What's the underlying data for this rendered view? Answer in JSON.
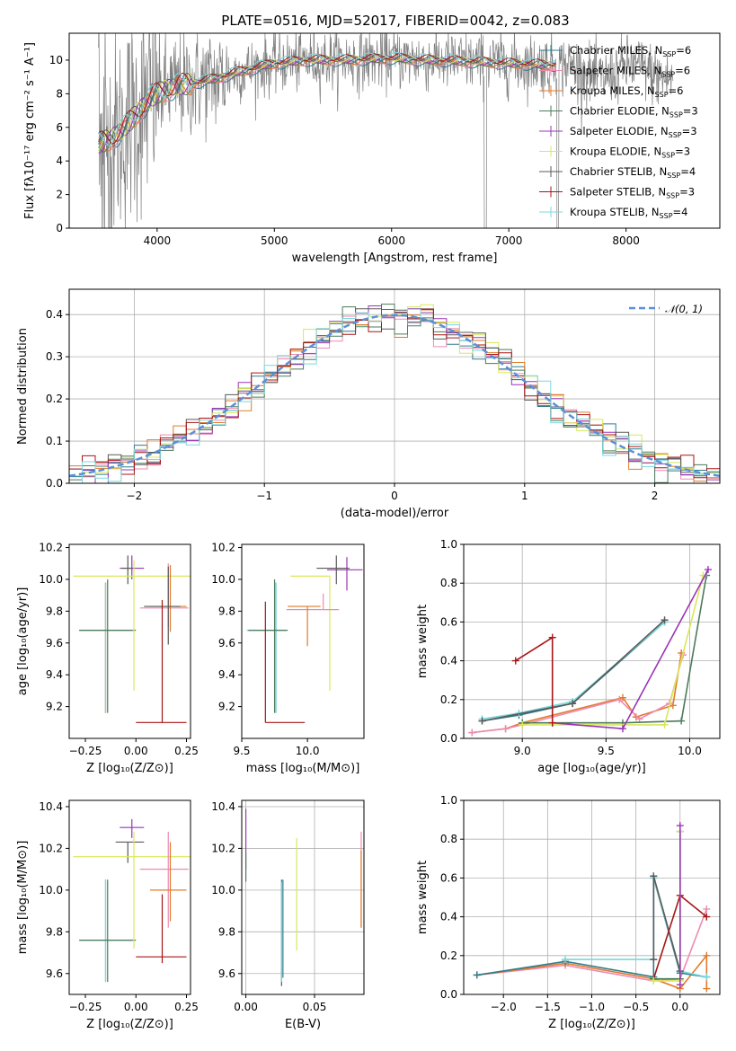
{
  "figure": {
    "title": "PLATE=0516, MJD=52017, FIBERID=0042, z=0.083"
  },
  "colors": {
    "data": "#808080",
    "normal": "#5b8fd9",
    "Chabrier MILES": "#2e7d8c",
    "Salpeter MILES": "#ee8ab2",
    "Kroupa MILES": "#e07b2a",
    "Chabrier ELODIE": "#4d7a5c",
    "Salpeter ELODIE": "#9a35b5",
    "Kroupa ELODIE": "#d8e85a",
    "Chabrier STELIB": "#5a5a5a",
    "Salpeter STELIB": "#a81414",
    "Kroupa STELIB": "#7ad8dc"
  },
  "chart_data": [
    {
      "id": "spectrum",
      "type": "line",
      "xlabel": "wavelength [Angstrom, rest frame]",
      "ylabel": "Flux [fλ10⁻¹⁷ erg cm⁻² s⁻¹ A⁻¹]",
      "xlim": [
        3250,
        8800
      ],
      "ylim": [
        0,
        11.6
      ],
      "xticks": [
        4000,
        5000,
        6000,
        7000,
        8000
      ],
      "yticks": [
        0,
        2,
        4,
        6,
        8,
        10
      ],
      "legend_position": "right",
      "legend": [
        {
          "label": "Chabrier MILES, N",
          "sub": "SSP",
          "n": "=6",
          "model": "Chabrier MILES"
        },
        {
          "label": "Salpeter MILES, N",
          "sub": "SSP",
          "n": "=6",
          "model": "Salpeter MILES"
        },
        {
          "label": "Kroupa MILES, N",
          "sub": "SSP",
          "n": "=6",
          "model": "Kroupa MILES"
        },
        {
          "label": "Chabrier ELODIE, N",
          "sub": "SSP",
          "n": "=3",
          "model": "Chabrier ELODIE"
        },
        {
          "label": "Salpeter ELODIE, N",
          "sub": "SSP",
          "n": "=3",
          "model": "Salpeter ELODIE"
        },
        {
          "label": "Kroupa ELODIE, N",
          "sub": "SSP",
          "n": "=3",
          "model": "Kroupa ELODIE"
        },
        {
          "label": "Chabrier STELIB, N",
          "sub": "SSP",
          "n": "=4",
          "model": "Chabrier STELIB"
        },
        {
          "label": "Salpeter STELIB, N",
          "sub": "SSP",
          "n": "=3",
          "model": "Salpeter STELIB"
        },
        {
          "label": "Kroupa STELIB, N",
          "sub": "SSP",
          "n": "=4",
          "model": "Kroupa STELIB"
        }
      ],
      "model_continuum": {
        "x": [
          3500,
          3600,
          3700,
          3800,
          3900,
          4000,
          4100,
          4200,
          4300,
          4500,
          4700,
          5000,
          5300,
          5600,
          6000,
          6300,
          6700,
          7000,
          7400
        ],
        "y": [
          5.0,
          5.3,
          5.8,
          6.6,
          7.4,
          8.0,
          8.3,
          8.5,
          8.6,
          8.9,
          9.3,
          9.8,
          10.0,
          10.0,
          10.1,
          10.0,
          9.9,
          9.8,
          9.7
        ]
      }
    },
    {
      "id": "residuals",
      "type": "step",
      "xlabel": "(data-model)/error",
      "ylabel": "Normed distribution",
      "xlim": [
        -2.5,
        2.5
      ],
      "ylim": [
        0,
        0.46
      ],
      "xticks": [
        -2,
        -1,
        0,
        1,
        2
      ],
      "yticks": [
        0.0,
        0.1,
        0.2,
        0.3,
        0.4
      ],
      "grid": true,
      "legend_position": "top-right",
      "normal_label": "𝒩(0, 1)"
    },
    {
      "id": "age-vs-Z",
      "type": "errorbar",
      "xlabel": "Z [log₁₀(Z/Z⊙)]",
      "ylabel": "age  [log₁₀(age/yr)]",
      "xlim": [
        -0.33,
        0.27
      ],
      "ylim": [
        9.0,
        10.22
      ],
      "xticks": [
        -0.25,
        0.0,
        0.25
      ],
      "yticks": [
        9.2,
        9.4,
        9.6,
        9.8,
        10.0,
        10.2
      ],
      "points": [
        {
          "model": "Chabrier MILES",
          "x": -0.15,
          "xerr": [
            0.13,
            0.13
          ],
          "y": 9.68,
          "yerr": [
            0.52,
            0.3
          ]
        },
        {
          "model": "Kroupa MILES",
          "x": -0.15,
          "xerr": [
            0.13,
            0.13
          ],
          "y": 9.68,
          "yerr": [
            0.52,
            0.3
          ]
        },
        {
          "model": "Kroupa STELIB",
          "x": -0.15,
          "xerr": [
            0.13,
            0.13
          ],
          "y": 9.68,
          "yerr": [
            0.52,
            0.3
          ]
        },
        {
          "model": "Chabrier ELODIE",
          "x": -0.14,
          "xerr": [
            0.14,
            0.14
          ],
          "y": 9.68,
          "yerr": [
            0.52,
            0.32
          ]
        },
        {
          "model": "Salpeter ELODIE",
          "x": -0.02,
          "xerr": [
            0.06,
            0.06
          ],
          "y": 10.07,
          "yerr": [
            0.07,
            0.08
          ]
        },
        {
          "model": "Chabrier STELIB",
          "x": -0.04,
          "xerr": [
            0.03,
            0.03
          ],
          "y": 10.07,
          "yerr": [
            0.1,
            0.08
          ]
        },
        {
          "model": "Kroupa ELODIE",
          "x": -0.01,
          "xerr": [
            0.3,
            0.3
          ],
          "y": 10.02,
          "yerr": [
            0.72,
            0.1
          ]
        },
        {
          "model": "Salpeter MILES",
          "x": 0.16,
          "xerr": [
            0.14,
            0.1
          ],
          "y": 9.82,
          "yerr": [
            0.12,
            0.28
          ]
        },
        {
          "model": "Kroupa MILES",
          "x": 0.17,
          "xerr": [
            0.1,
            0.08
          ],
          "y": 9.83,
          "yerr": [
            0.16,
            0.26
          ]
        },
        {
          "model": "Chabrier STELIB",
          "x": 0.16,
          "xerr": [
            0.12,
            0.06
          ],
          "y": 9.83,
          "yerr": [
            0.24,
            0.25
          ]
        },
        {
          "model": "Salpeter STELIB",
          "x": 0.13,
          "xerr": [
            0.13,
            0.12
          ],
          "y": 9.1,
          "yerr": [
            0.0,
            0.77
          ]
        }
      ]
    },
    {
      "id": "age-vs-mass",
      "type": "errorbar",
      "xlabel": "mass [log₁₀(M/M⊙)]",
      "ylabel": "",
      "xlim": [
        9.5,
        10.43
      ],
      "ylim": [
        9.0,
        10.22
      ],
      "xticks": [
        9.5,
        10.0
      ],
      "yticks": [
        9.2,
        9.4,
        9.6,
        9.8,
        10.0,
        10.2
      ],
      "points": [
        {
          "model": "Chabrier MILES",
          "x": 9.76,
          "xerr": [
            0.22,
            0.08
          ],
          "y": 9.68,
          "yerr": [
            0.52,
            0.3
          ]
        },
        {
          "model": "Kroupa STELIB",
          "x": 9.76,
          "xerr": [
            0.22,
            0.08
          ],
          "y": 9.68,
          "yerr": [
            0.52,
            0.3
          ]
        },
        {
          "model": "Chabrier ELODIE",
          "x": 9.75,
          "xerr": [
            0.2,
            0.1
          ],
          "y": 9.68,
          "yerr": [
            0.52,
            0.32
          ]
        },
        {
          "model": "Salpeter STELIB",
          "x": 9.68,
          "xerr": [
            0.0,
            0.3
          ],
          "y": 9.1,
          "yerr": [
            0.0,
            0.76
          ]
        },
        {
          "model": "Salpeter ELODIE",
          "x": 10.3,
          "xerr": [
            0.15,
            0.12
          ],
          "y": 10.06,
          "yerr": [
            0.13,
            0.08
          ]
        },
        {
          "model": "Chabrier STELIB",
          "x": 10.22,
          "xerr": [
            0.15,
            0.1
          ],
          "y": 10.07,
          "yerr": [
            0.1,
            0.08
          ]
        },
        {
          "model": "Kroupa ELODIE",
          "x": 10.17,
          "xerr": [
            0.3,
            0.0
          ],
          "y": 10.02,
          "yerr": [
            0.72,
            0.0
          ]
        },
        {
          "model": "Salpeter MILES",
          "x": 10.12,
          "xerr": [
            0.28,
            0.12
          ],
          "y": 9.81,
          "yerr": [
            0.0,
            0.1
          ]
        },
        {
          "model": "Kroupa MILES",
          "x": 10.0,
          "xerr": [
            0.15,
            0.1
          ],
          "y": 9.83,
          "yerr": [
            0.25,
            0.0
          ]
        }
      ]
    },
    {
      "id": "massweight-vs-age",
      "type": "line",
      "xlabel": "age  [log₁₀(age/yr)]",
      "ylabel": "mass weight",
      "xlim": [
        8.65,
        10.18
      ],
      "ylim": [
        0,
        1
      ],
      "xticks": [
        9.0,
        9.5,
        10.0
      ],
      "yticks": [
        0.0,
        0.2,
        0.4,
        0.6,
        0.8,
        1.0
      ],
      "grid": true,
      "series": [
        {
          "model": "Chabrier MILES",
          "x": [
            8.76,
            8.98,
            9.3,
            9.85
          ],
          "y": [
            0.09,
            0.12,
            0.18,
            0.6
          ]
        },
        {
          "model": "Kroupa STELIB",
          "x": [
            8.76,
            8.98,
            9.3,
            9.85
          ],
          "y": [
            0.1,
            0.13,
            0.19,
            0.6
          ]
        },
        {
          "model": "Chabrier STELIB",
          "x": [
            8.76,
            9.3,
            9.85
          ],
          "y": [
            0.09,
            0.18,
            0.61
          ]
        },
        {
          "model": "Kroupa MILES",
          "x": [
            8.7,
            8.9,
            9.0,
            9.6,
            9.68,
            9.9,
            9.95
          ],
          "y": [
            0.03,
            0.05,
            0.08,
            0.21,
            0.11,
            0.17,
            0.44
          ]
        },
        {
          "model": "Salpeter MILES",
          "x": [
            8.7,
            8.9,
            9.0,
            9.58,
            9.7,
            9.88,
            9.96
          ],
          "y": [
            0.03,
            0.05,
            0.07,
            0.2,
            0.1,
            0.18,
            0.43
          ]
        },
        {
          "model": "Chabrier ELODIE",
          "x": [
            9.0,
            9.6,
            9.95,
            10.1
          ],
          "y": [
            0.08,
            0.08,
            0.09,
            0.84
          ]
        },
        {
          "model": "Kroupa ELODIE",
          "x": [
            9.0,
            9.85,
            10.08
          ],
          "y": [
            0.07,
            0.07,
            0.84
          ]
        },
        {
          "model": "Salpeter ELODIE",
          "x": [
            9.18,
            9.6,
            10.11
          ],
          "y": [
            0.08,
            0.05,
            0.87
          ]
        },
        {
          "model": "Salpeter STELIB",
          "x": [
            8.96,
            9.18,
            9.18
          ],
          "y": [
            0.4,
            0.52,
            0.08
          ]
        }
      ]
    },
    {
      "id": "mass-vs-Z",
      "type": "errorbar",
      "xlabel": "Z [log₁₀(Z/Z⊙)]",
      "ylabel": "mass [log₁₀(M/M⊙)]",
      "xlim": [
        -0.33,
        0.27
      ],
      "ylim": [
        9.5,
        10.43
      ],
      "xticks": [
        -0.25,
        0.0,
        0.25
      ],
      "yticks": [
        9.6,
        9.8,
        10.0,
        10.2,
        10.4
      ],
      "points": [
        {
          "model": "Chabrier MILES",
          "x": -0.15,
          "xerr": [
            0.13,
            0.13
          ],
          "y": 9.76,
          "yerr": [
            0.2,
            0.29
          ]
        },
        {
          "model": "Kroupa STELIB",
          "x": -0.15,
          "xerr": [
            0.13,
            0.13
          ],
          "y": 9.76,
          "yerr": [
            0.2,
            0.29
          ]
        },
        {
          "model": "Chabrier ELODIE",
          "x": -0.14,
          "xerr": [
            0.14,
            0.14
          ],
          "y": 9.76,
          "yerr": [
            0.2,
            0.29
          ]
        },
        {
          "model": "Salpeter STELIB",
          "x": 0.13,
          "xerr": [
            0.13,
            0.12
          ],
          "y": 9.68,
          "yerr": [
            0.03,
            0.3
          ]
        },
        {
          "model": "Salpeter ELODIE",
          "x": -0.02,
          "xerr": [
            0.06,
            0.06
          ],
          "y": 10.3,
          "yerr": [
            0.05,
            0.04
          ]
        },
        {
          "model": "Chabrier STELIB",
          "x": -0.04,
          "xerr": [
            0.06,
            0.08
          ],
          "y": 10.23,
          "yerr": [
            0.1,
            0.0
          ]
        },
        {
          "model": "Kroupa ELODIE",
          "x": -0.01,
          "xerr": [
            0.3,
            0.3
          ],
          "y": 10.16,
          "yerr": [
            0.44,
            0.12
          ]
        },
        {
          "model": "Salpeter MILES",
          "x": 0.16,
          "xerr": [
            0.14,
            0.1
          ],
          "y": 10.1,
          "yerr": [
            0.28,
            0.18
          ]
        },
        {
          "model": "Kroupa MILES",
          "x": 0.17,
          "xerr": [
            0.1,
            0.08
          ],
          "y": 10.0,
          "yerr": [
            0.15,
            0.23
          ]
        }
      ]
    },
    {
      "id": "mass-vs-EBV",
      "type": "errorbar",
      "xlabel": "E(B-V)",
      "ylabel": "",
      "xlim": [
        -0.003,
        0.086
      ],
      "ylim": [
        9.5,
        10.43
      ],
      "xticks": [
        0.0,
        0.05
      ],
      "yticks": [
        9.6,
        9.8,
        10.0,
        10.2,
        10.4
      ],
      "grid": true,
      "points": [
        {
          "model": "Salpeter ELODIE",
          "x": 0.0,
          "y": 10.3,
          "yerr": [
            0.2,
            0.09
          ]
        },
        {
          "model": "Chabrier ELODIE",
          "x": 0.0,
          "y": 10.14,
          "yerr": [
            0.1,
            0.04
          ]
        },
        {
          "model": "Chabrier STELIB",
          "x": 0.026,
          "y": 9.77,
          "yerr": [
            0.23,
            0.28
          ]
        },
        {
          "model": "Chabrier MILES",
          "x": 0.027,
          "y": 9.78,
          "yerr": [
            0.2,
            0.27
          ]
        },
        {
          "model": "Kroupa STELIB",
          "x": 0.026,
          "y": 9.76,
          "yerr": [
            0.2,
            0.28
          ]
        },
        {
          "model": "Kroupa ELODIE",
          "x": 0.037,
          "y": 9.98,
          "yerr": [
            0.27,
            0.27
          ]
        },
        {
          "model": "Salpeter MILES",
          "x": 0.084,
          "y": 10.1,
          "yerr": [
            0.28,
            0.18
          ]
        },
        {
          "model": "Kroupa MILES",
          "x": 0.084,
          "y": 9.98,
          "yerr": [
            0.16,
            0.21
          ]
        }
      ]
    },
    {
      "id": "massweight-vs-Z",
      "type": "line",
      "xlabel": "Z [log₁₀(Z/Z⊙)]",
      "ylabel": "mass weight",
      "xlim": [
        -2.45,
        0.45
      ],
      "ylim": [
        0,
        1
      ],
      "xticks": [
        -2.0,
        -1.5,
        -1.0,
        -0.5,
        0.0
      ],
      "yticks": [
        0.0,
        0.2,
        0.4,
        0.6,
        0.8,
        1.0
      ],
      "grid": true,
      "series": [
        {
          "model": "Salpeter MILES",
          "x": [
            -2.3,
            -1.3,
            -0.3,
            0.0,
            0.3
          ],
          "y": [
            0.1,
            0.15,
            0.07,
            0.08,
            0.44
          ]
        },
        {
          "model": "Kroupa MILES",
          "x": [
            -2.3,
            -1.3,
            -0.3,
            0.0,
            0.3,
            0.3
          ],
          "y": [
            0.1,
            0.16,
            0.08,
            0.03,
            0.2,
            0.03
          ]
        },
        {
          "model": "Chabrier MILES",
          "x": [
            -2.3,
            -1.3,
            -0.3,
            -0.3,
            0.0,
            0.3
          ],
          "y": [
            0.1,
            0.17,
            0.09,
            0.6,
            0.11,
            0.09
          ]
        },
        {
          "model": "Kroupa STELIB",
          "x": [
            -1.3,
            -0.3,
            -0.3,
            0.0,
            0.3
          ],
          "y": [
            0.18,
            0.18,
            0.6,
            0.12,
            0.09
          ]
        },
        {
          "model": "Chabrier STELIB",
          "x": [
            -0.3,
            -0.3,
            0.0
          ],
          "y": [
            0.18,
            0.61,
            0.12
          ]
        },
        {
          "model": "Salpeter STELIB",
          "x": [
            -0.3,
            0.0,
            0.3
          ],
          "y": [
            0.08,
            0.51,
            0.4
          ]
        },
        {
          "model": "Chabrier ELODIE",
          "x": [
            -0.3,
            0.0,
            0.0
          ],
          "y": [
            0.08,
            0.08,
            0.84
          ]
        },
        {
          "model": "Kroupa ELODIE",
          "x": [
            -0.3,
            0.0,
            0.0
          ],
          "y": [
            0.07,
            0.07,
            0.84
          ]
        },
        {
          "model": "Salpeter ELODIE",
          "x": [
            0.0,
            0.0
          ],
          "y": [
            0.05,
            0.87
          ]
        }
      ]
    }
  ]
}
